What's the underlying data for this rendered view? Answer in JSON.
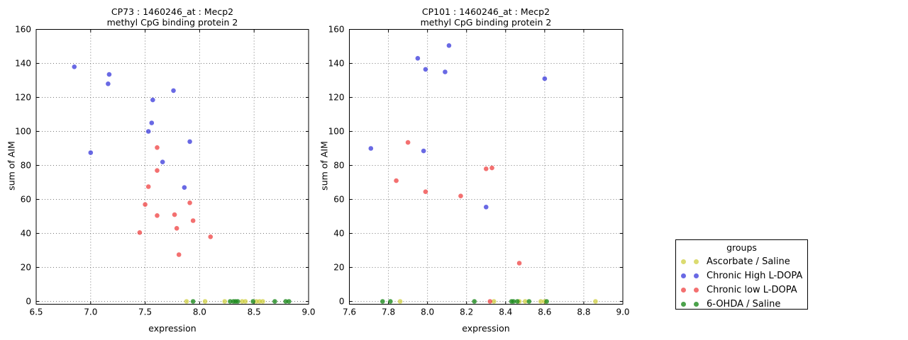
{
  "figure": {
    "background": "#ffffff",
    "grid_color": "#777777",
    "axis_color": "#000000"
  },
  "groups_legend": {
    "title": "groups",
    "entries": [
      {
        "label": "Ascorbate / Saline",
        "color": "#cccc33",
        "opacity": 0.7
      },
      {
        "label": "Chronic High L-DOPA",
        "color": "#2a2ad9",
        "opacity": 0.7
      },
      {
        "label": "Chronic low L-DOPA",
        "color": "#ee3333",
        "opacity": 0.7
      },
      {
        "label": "6-OHDA / Saline",
        "color": "#1e8b1e",
        "opacity": 0.8
      }
    ]
  },
  "chart_data": [
    {
      "type": "scatter",
      "title_line1": "CP73 : 1460246_at : Mecp2",
      "title_line2": "methyl CpG binding protein 2",
      "xlabel": "expression",
      "ylabel": "sum of AIM",
      "xlim": [
        6.5,
        9.0
      ],
      "ylim": [
        0,
        160
      ],
      "grid": true,
      "legend_position": "outside-right",
      "xticks": [
        6.5,
        7.0,
        7.5,
        8.0,
        8.5,
        9.0
      ],
      "xtick_labels": [
        "6.5",
        "7.0",
        "7.5",
        "8.0",
        "8.5",
        "9.0"
      ],
      "yticks": [
        0,
        20,
        40,
        60,
        80,
        100,
        120,
        140,
        160
      ],
      "ytick_labels": [
        "0",
        "20",
        "40",
        "60",
        "80",
        "100",
        "120",
        "140",
        "160"
      ],
      "series": [
        {
          "name": "Ascorbate / Saline",
          "color": "#cccc33",
          "opacity": 0.7,
          "points": [
            [
              7.88,
              0
            ],
            [
              8.05,
              0
            ],
            [
              8.23,
              0
            ],
            [
              8.39,
              0
            ],
            [
              8.42,
              0
            ],
            [
              8.52,
              0
            ],
            [
              8.55,
              0
            ],
            [
              8.58,
              0
            ]
          ]
        },
        {
          "name": "Chronic High L-DOPA",
          "color": "#2a2ad9",
          "opacity": 0.7,
          "points": [
            [
              6.85,
              138
            ],
            [
              7.17,
              133.5
            ],
            [
              7.16,
              128
            ],
            [
              7.76,
              124
            ],
            [
              7.57,
              118.5
            ],
            [
              7.56,
              105
            ],
            [
              7.53,
              100
            ],
            [
              7.91,
              94
            ],
            [
              7.0,
              87.5
            ],
            [
              7.66,
              82
            ],
            [
              7.86,
              67
            ]
          ]
        },
        {
          "name": "Chronic low L-DOPA",
          "color": "#ee3333",
          "opacity": 0.7,
          "points": [
            [
              7.61,
              90.5
            ],
            [
              7.61,
              77
            ],
            [
              7.53,
              67.5
            ],
            [
              7.91,
              58
            ],
            [
              7.5,
              57
            ],
            [
              7.77,
              51
            ],
            [
              7.61,
              50.5
            ],
            [
              7.94,
              47.5
            ],
            [
              7.79,
              43
            ],
            [
              7.45,
              40.5
            ],
            [
              8.1,
              38
            ],
            [
              7.81,
              27.5
            ]
          ]
        },
        {
          "name": "6-OHDA / Saline",
          "color": "#1e8b1e",
          "opacity": 0.8,
          "points": [
            [
              7.94,
              0
            ],
            [
              8.28,
              0
            ],
            [
              8.31,
              0
            ],
            [
              8.33,
              0
            ],
            [
              8.35,
              0
            ],
            [
              8.49,
              0
            ],
            [
              8.69,
              0
            ],
            [
              8.79,
              0
            ],
            [
              8.82,
              0
            ]
          ]
        }
      ]
    },
    {
      "type": "scatter",
      "title_line1": "CP101 : 1460246_at : Mecp2",
      "title_line2": "methyl CpG binding protein 2",
      "xlabel": "expression",
      "ylabel": "sum of AIM",
      "xlim": [
        7.6,
        9.0
      ],
      "ylim": [
        0,
        160
      ],
      "grid": true,
      "legend_position": "outside-right",
      "xticks": [
        7.6,
        7.8,
        8.0,
        8.2,
        8.4,
        8.6,
        8.8,
        9.0
      ],
      "xtick_labels": [
        "7.6",
        "7.8",
        "8.0",
        "8.2",
        "8.4",
        "8.6",
        "8.8",
        "9.0"
      ],
      "yticks": [
        0,
        20,
        40,
        60,
        80,
        100,
        120,
        140,
        160
      ],
      "ytick_labels": [
        "0",
        "20",
        "40",
        "60",
        "80",
        "100",
        "120",
        "140",
        "160"
      ],
      "series": [
        {
          "name": "Ascorbate / Saline",
          "color": "#cccc33",
          "opacity": 0.7,
          "points": [
            [
              7.86,
              0
            ],
            [
              8.34,
              0
            ],
            [
              8.47,
              0
            ],
            [
              8.5,
              0
            ],
            [
              8.58,
              0
            ],
            [
              8.6,
              0
            ],
            [
              8.86,
              0
            ]
          ]
        },
        {
          "name": "Chronic High L-DOPA",
          "color": "#2a2ad9",
          "opacity": 0.7,
          "points": [
            [
              8.11,
              150.5
            ],
            [
              7.95,
              143
            ],
            [
              7.99,
              136.5
            ],
            [
              8.09,
              135
            ],
            [
              8.6,
              131
            ],
            [
              7.71,
              90
            ],
            [
              7.98,
              88.5
            ],
            [
              8.3,
              55.5
            ]
          ]
        },
        {
          "name": "Chronic low L-DOPA",
          "color": "#ee3333",
          "opacity": 0.7,
          "points": [
            [
              7.9,
              93.5
            ],
            [
              8.3,
              78
            ],
            [
              8.33,
              78.5
            ],
            [
              7.84,
              71
            ],
            [
              7.99,
              64.5
            ],
            [
              8.17,
              62
            ],
            [
              8.47,
              22.5
            ],
            [
              8.32,
              0
            ]
          ]
        },
        {
          "name": "6-OHDA / Saline",
          "color": "#1e8b1e",
          "opacity": 0.8,
          "points": [
            [
              7.77,
              0
            ],
            [
              7.81,
              0
            ],
            [
              8.24,
              0
            ],
            [
              8.43,
              0
            ],
            [
              8.44,
              0
            ],
            [
              8.46,
              0
            ],
            [
              8.52,
              0
            ],
            [
              8.61,
              0
            ]
          ]
        }
      ]
    }
  ]
}
